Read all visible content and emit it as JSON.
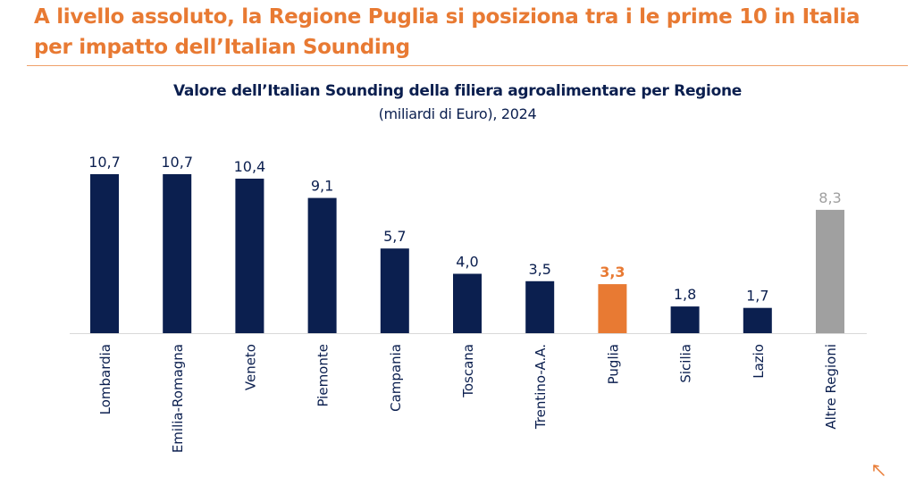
{
  "slide": {
    "headline_line1": "A livello assoluto, la Regione Puglia si posiziona tra i le prime 10 in Italia",
    "headline_line2": "per impatto dell’Italian Sounding",
    "accent_color": "#E87A33"
  },
  "chart_data": {
    "type": "bar",
    "title": "Valore dell’Italian Sounding della filiera agroalimentare per Regione",
    "subtitle": "(miliardi di Euro), 2024",
    "xlabel": "",
    "ylabel": "",
    "grid": false,
    "legend": "none",
    "ylim": [
      0,
      11
    ],
    "categories": [
      "Lombardia",
      "Emilia-Romagna",
      "Veneto",
      "Piemonte",
      "Campania",
      "Toscana",
      "Trentino-A.A.",
      "Puglia",
      "Sicilia",
      "Lazio",
      "Altre Regioni"
    ],
    "values": [
      10.7,
      10.7,
      10.4,
      9.1,
      5.7,
      4.0,
      3.5,
      3.3,
      1.8,
      1.7,
      8.3
    ],
    "data_labels": [
      "10,7",
      "10,7",
      "10,4",
      "9,1",
      "5,7",
      "4,0",
      "3,5",
      "3,3",
      "1,8",
      "1,7",
      "8,3"
    ],
    "bar_colors": [
      "#0B1F4F",
      "#0B1F4F",
      "#0B1F4F",
      "#0B1F4F",
      "#0B1F4F",
      "#0B1F4F",
      "#0B1F4F",
      "#E87A33",
      "#0B1F4F",
      "#0B1F4F",
      "#A0A0A0"
    ],
    "label_colors": [
      "#0B1F4F",
      "#0B1F4F",
      "#0B1F4F",
      "#0B1F4F",
      "#0B1F4F",
      "#0B1F4F",
      "#0B1F4F",
      "#E87A33",
      "#0B1F4F",
      "#0B1F4F",
      "#A0A0A0"
    ],
    "highlight_category": "Puglia",
    "axis_color": "#D9D9D9"
  }
}
